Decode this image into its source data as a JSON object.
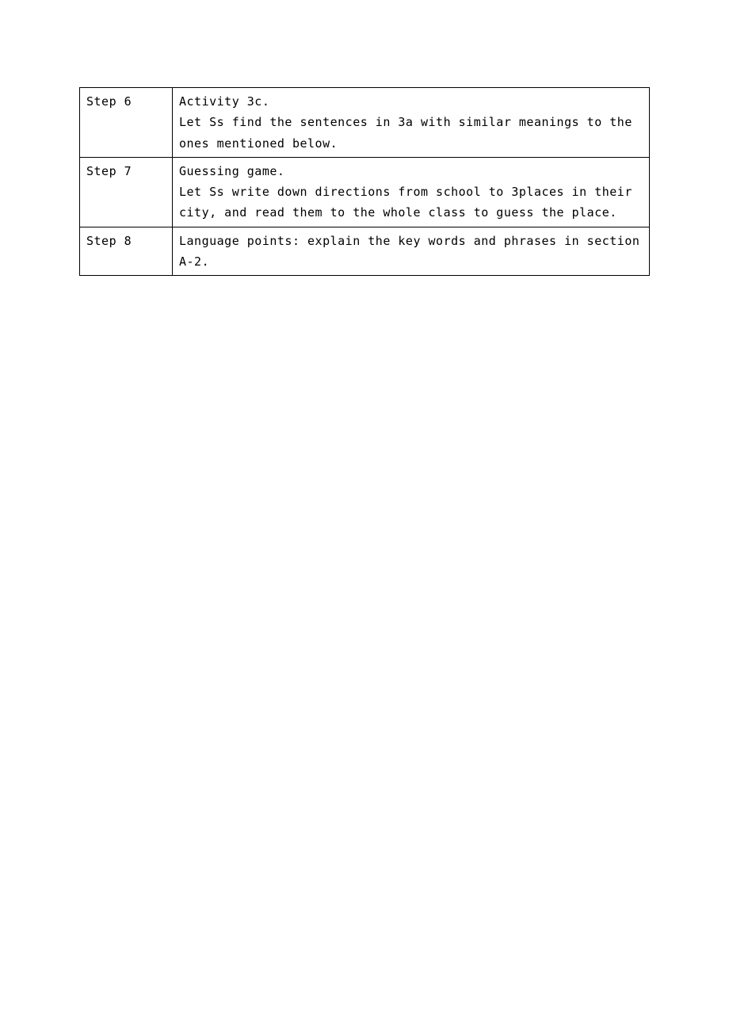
{
  "table": {
    "border_color": "#000000",
    "background_color": "#ffffff",
    "text_color": "#000000",
    "font_size": 15,
    "font_family": "SimSun",
    "rows": [
      {
        "step": "Step 6",
        "content_line1": "Activity 3c.",
        "content_line2": "Let Ss find the sentences in 3a with similar meanings to the ones mentioned below."
      },
      {
        "step": "Step 7",
        "content_line1": "Guessing game.",
        "content_line2": "Let Ss write down directions from school to 3places in their city, and read them to the whole class to guess the place."
      },
      {
        "step": "Step 8",
        "content_line1": "Language points: explain the key words and phrases in section A-2."
      }
    ]
  }
}
